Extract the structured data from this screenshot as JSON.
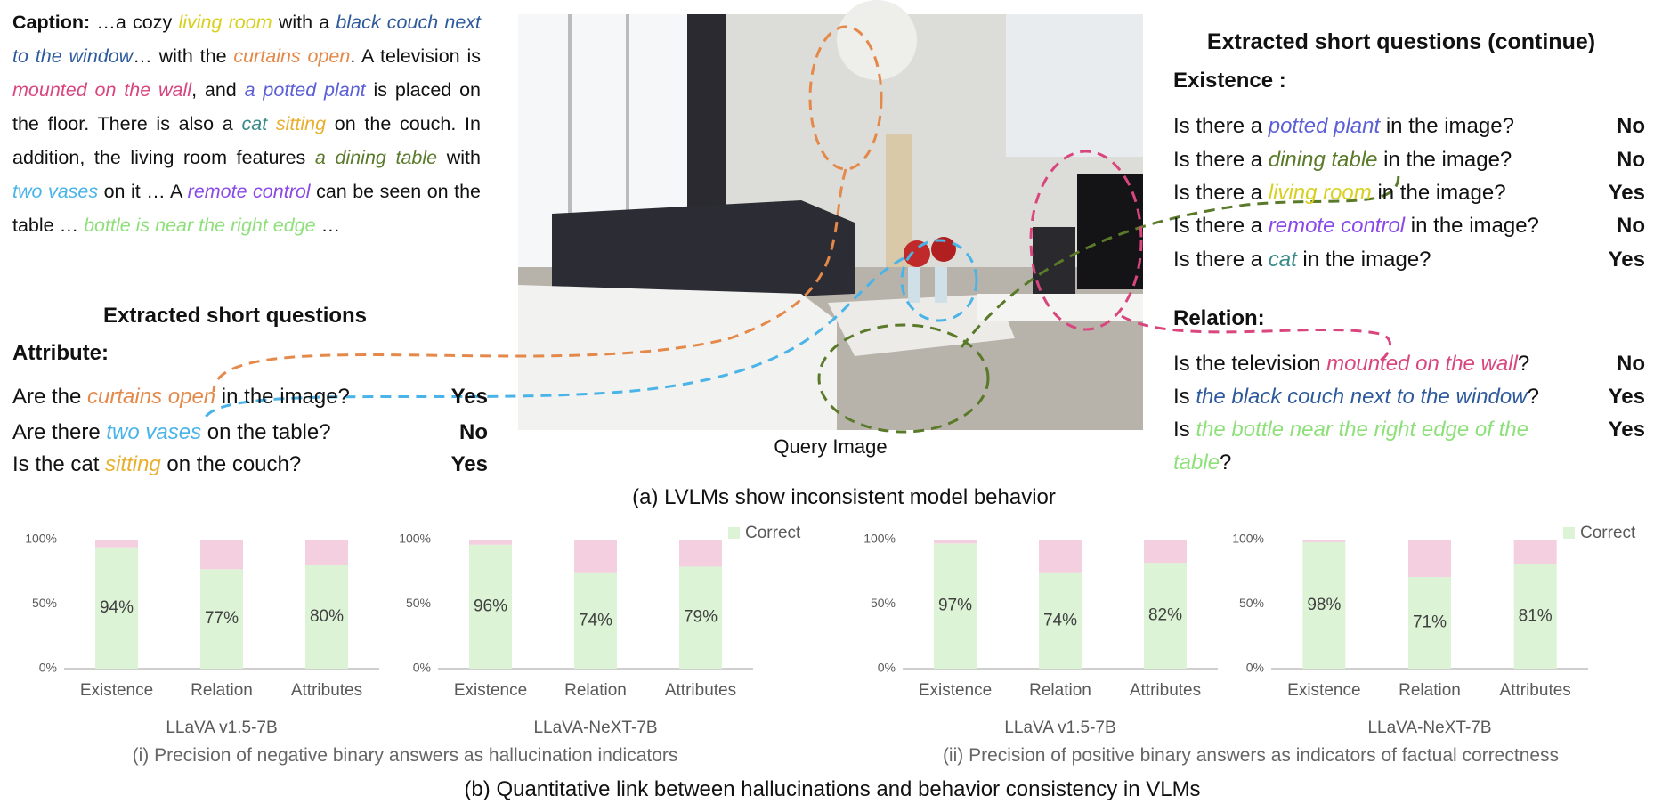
{
  "caption": {
    "label": "Caption:",
    "segments": [
      {
        "text": " …a cozy "
      },
      {
        "text": "living room",
        "color": "#d8d020"
      },
      {
        "text": " with a "
      },
      {
        "text": "black couch next to the window",
        "color": "#2e5a9c"
      },
      {
        "text": "… with the "
      },
      {
        "text": "curtains open",
        "color": "#e4894a"
      },
      {
        "text": ". A television is "
      },
      {
        "text": "mounted on the wall",
        "color": "#d9467e"
      },
      {
        "text": ", and "
      },
      {
        "text": "a potted plant",
        "color": "#5a5fd6"
      },
      {
        "text": " is placed on the floor. There is also a "
      },
      {
        "text": "cat",
        "color": "#3a8a8a"
      },
      {
        "text": " "
      },
      {
        "text": "sitting",
        "color": "#e8b030"
      },
      {
        "text": " on the couch. In addition, the living room features "
      },
      {
        "text": "a dining table",
        "color": "#5a7a2a"
      },
      {
        "text": " with "
      },
      {
        "text": "two vases",
        "color": "#4ab4e8"
      },
      {
        "text": " on it … A "
      },
      {
        "text": "remote control",
        "color": "#8a4ae8"
      },
      {
        "text": " can be seen on the table … "
      },
      {
        "text": "bottle is near the right edge",
        "color": "#8ee07a"
      },
      {
        "text": " …"
      }
    ]
  },
  "left": {
    "title": "Extracted short questions",
    "heading": "Attribute:",
    "questions": [
      {
        "segments": [
          {
            "text": "Are the "
          },
          {
            "text": "curtains open",
            "color": "#e4894a"
          },
          {
            "text": " in the image?"
          }
        ],
        "answer": "Yes"
      },
      {
        "segments": [
          {
            "text": "Are there "
          },
          {
            "text": "two vases",
            "color": "#4ab4e8"
          },
          {
            "text": " on the table?"
          }
        ],
        "answer": "No"
      },
      {
        "segments": [
          {
            "text": "Is the cat "
          },
          {
            "text": "sitting",
            "color": "#e8b030"
          },
          {
            "text": " on the couch?"
          }
        ],
        "answer": "Yes"
      }
    ]
  },
  "image_label": "Query Image",
  "right": {
    "title": "Extracted short questions (continue)",
    "sections": [
      {
        "heading": "Existence :",
        "questions": [
          {
            "segments": [
              {
                "text": "Is there a "
              },
              {
                "text": "potted plant",
                "color": "#5a5fd6"
              },
              {
                "text": " in the image?"
              }
            ],
            "answer": "No"
          },
          {
            "segments": [
              {
                "text": "Is there a "
              },
              {
                "text": "dining table",
                "color": "#5a7a2a"
              },
              {
                "text": " in the image?"
              }
            ],
            "answer": "No"
          },
          {
            "segments": [
              {
                "text": "Is there a "
              },
              {
                "text": "living room",
                "color": "#d8d020"
              },
              {
                "text": " in the image?"
              }
            ],
            "answer": "Yes"
          },
          {
            "segments": [
              {
                "text": "Is there a "
              },
              {
                "text": "remote control",
                "color": "#8a4ae8"
              },
              {
                "text": " in the image?"
              }
            ],
            "answer": "No"
          },
          {
            "segments": [
              {
                "text": "Is there a "
              },
              {
                "text": "cat",
                "color": "#3a8a8a"
              },
              {
                "text": " in the image?"
              }
            ],
            "answer": "Yes"
          }
        ]
      },
      {
        "heading": "Relation:",
        "questions": [
          {
            "segments": [
              {
                "text": "Is the television "
              },
              {
                "text": "mounted on the wall",
                "color": "#d9467e"
              },
              {
                "text": "?"
              }
            ],
            "answer": "No"
          },
          {
            "segments": [
              {
                "text": "Is "
              },
              {
                "text": "the black couch next to the window",
                "color": "#2e5a9c"
              },
              {
                "text": "?"
              }
            ],
            "answer": "Yes"
          },
          {
            "segments": [
              {
                "text": "Is "
              },
              {
                "text": "the bottle near the right edge of the table",
                "color": "#8ee07a"
              },
              {
                "text": "?"
              }
            ],
            "answer": "Yes"
          }
        ]
      }
    ]
  },
  "panel_a": "(a) LVLMs show inconsistent model behavior",
  "panel_b": {
    "subtitles": [
      "(i) Precision of negative binary answers as hallucination indicators",
      "(ii) Precision of positive binary answers as indicators of factual correctness"
    ],
    "caption": "(b) Quantitative link between hallucinations and behavior consistency in VLMs"
  },
  "chart_data": [
    {
      "type": "bar",
      "stacked": true,
      "title": "LLaVA v1.5-7B",
      "categories": [
        "Existence",
        "Relation",
        "Attributes"
      ],
      "series": [
        {
          "color": "#dcf3d6",
          "values": [
            94,
            77,
            80
          ],
          "value_labels": [
            "94%",
            "77%",
            "80%"
          ]
        },
        {
          "color": "#f4cfe0",
          "values": [
            6,
            23,
            20
          ]
        }
      ],
      "ylim": [
        0,
        100
      ],
      "yticks": [
        {
          "value": 0,
          "label": "0%"
        },
        {
          "value": 50,
          "label": "50%"
        },
        {
          "value": 100,
          "label": "100%"
        }
      ],
      "legend": false
    },
    {
      "type": "bar",
      "stacked": true,
      "title": "LLaVA-NeXT-7B",
      "categories": [
        "Existence",
        "Relation",
        "Attributes"
      ],
      "series": [
        {
          "name": "Correct",
          "color": "#dcf3d6",
          "values": [
            96,
            74,
            79
          ],
          "value_labels": [
            "96%",
            "74%",
            "79%"
          ]
        },
        {
          "color": "#f4cfe0",
          "values": [
            4,
            26,
            21
          ]
        }
      ],
      "ylim": [
        0,
        100
      ],
      "yticks": [
        {
          "value": 0,
          "label": "0%"
        },
        {
          "value": 50,
          "label": "50%"
        },
        {
          "value": 100,
          "label": "100%"
        }
      ],
      "legend": "top-right"
    },
    {
      "type": "bar",
      "stacked": true,
      "title": "LLaVA v1.5-7B",
      "categories": [
        "Existence",
        "Relation",
        "Attributes"
      ],
      "series": [
        {
          "color": "#dcf3d6",
          "values": [
            97,
            74,
            82
          ],
          "value_labels": [
            "97%",
            "74%",
            "82%"
          ]
        },
        {
          "color": "#f4cfe0",
          "values": [
            3,
            26,
            18
          ]
        }
      ],
      "ylim": [
        0,
        100
      ],
      "yticks": [
        {
          "value": 0,
          "label": "0%"
        },
        {
          "value": 50,
          "label": "50%"
        },
        {
          "value": 100,
          "label": "100%"
        }
      ],
      "legend": false
    },
    {
      "type": "bar",
      "stacked": true,
      "title": "LLaVA-NeXT-7B",
      "categories": [
        "Existence",
        "Relation",
        "Attributes"
      ],
      "series": [
        {
          "name": "Correct",
          "color": "#dcf3d6",
          "values": [
            98,
            71,
            81
          ],
          "value_labels": [
            "98%",
            "71%",
            "81%"
          ]
        },
        {
          "color": "#f4cfe0",
          "values": [
            2,
            29,
            19
          ]
        }
      ],
      "ylim": [
        0,
        100
      ],
      "yticks": [
        {
          "value": 0,
          "label": "0%"
        },
        {
          "value": 50,
          "label": "50%"
        },
        {
          "value": 100,
          "label": "100%"
        }
      ],
      "legend": "top-right"
    }
  ]
}
